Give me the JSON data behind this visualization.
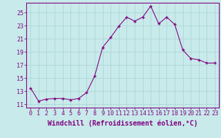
{
  "x": [
    0,
    1,
    2,
    3,
    4,
    5,
    6,
    7,
    8,
    9,
    10,
    11,
    12,
    13,
    14,
    15,
    16,
    17,
    18,
    19,
    20,
    21,
    22,
    23
  ],
  "y": [
    13.5,
    11.5,
    11.8,
    11.9,
    11.9,
    11.7,
    11.9,
    12.8,
    15.3,
    19.7,
    21.2,
    22.9,
    24.3,
    23.7,
    24.3,
    26.0,
    23.3,
    24.3,
    23.2,
    19.3,
    18.0,
    17.8,
    17.3,
    17.3
  ],
  "line_color": "#800080",
  "marker": "+",
  "bg_color": "#c8eaea",
  "grid_color": "#b0d8d8",
  "xlabel": "Windchill (Refroidissement éolien,°C)",
  "ylabel_ticks": [
    11,
    13,
    15,
    17,
    19,
    21,
    23,
    25
  ],
  "xtick_labels": [
    "0",
    "1",
    "2",
    "3",
    "4",
    "5",
    "6",
    "7",
    "8",
    "9",
    "10",
    "11",
    "12",
    "13",
    "14",
    "15",
    "16",
    "17",
    "18",
    "19",
    "20",
    "21",
    "22",
    "23"
  ],
  "ylim": [
    10.5,
    26.5
  ],
  "xlim": [
    -0.5,
    23.5
  ],
  "font_color": "#800080",
  "tick_fontsize": 6.0,
  "xlabel_fontsize": 7.0
}
